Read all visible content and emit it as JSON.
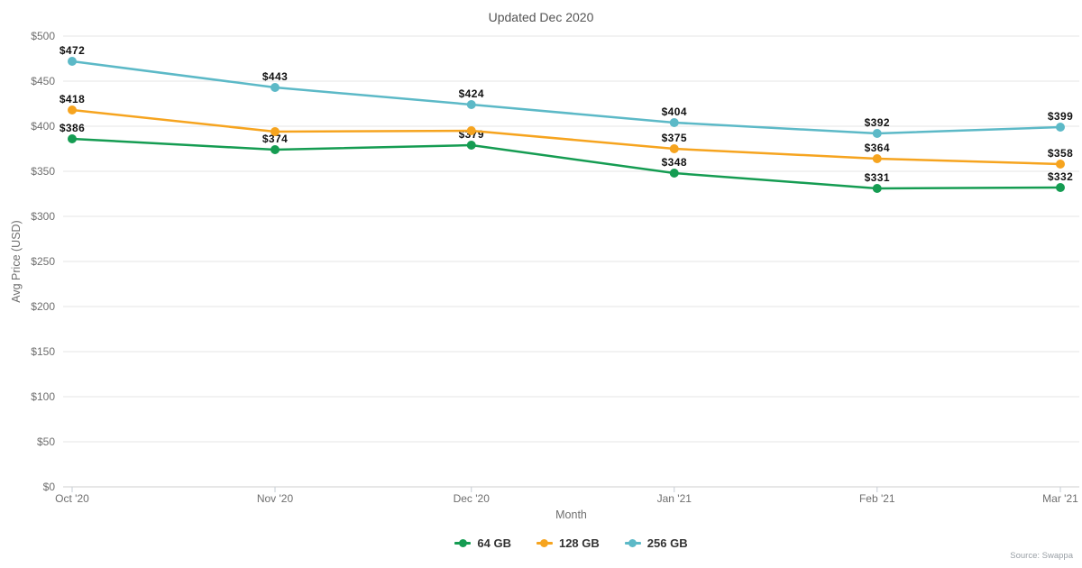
{
  "title": "Updated Dec 2020",
  "source": "Source: Swappa",
  "chart_data": {
    "type": "line",
    "title": "Updated Dec 2020",
    "xlabel": "Month",
    "ylabel": "Avg Price (USD)",
    "x": [
      "Oct '20",
      "Nov '20",
      "Dec '20",
      "Jan '21",
      "Feb '21",
      "Mar '21"
    ],
    "x_day_offsets": [
      0,
      31,
      61,
      92,
      123,
      151
    ],
    "ylim": [
      0,
      500
    ],
    "ytick_step": 50,
    "ytick_prefix": "$",
    "grid": true,
    "legend_position": "bottom",
    "series": [
      {
        "name": "64 GB",
        "color": "#159c52",
        "values": [
          386,
          374,
          379,
          348,
          331,
          332
        ],
        "labels": [
          "$386",
          "$374",
          "$379",
          "$348",
          "$331",
          "$332"
        ]
      },
      {
        "name": "128 GB",
        "color": "#f6a41f",
        "values": [
          418,
          394,
          395,
          375,
          364,
          358
        ],
        "labels": [
          "$418",
          null,
          null,
          "$375",
          "$364",
          "$358"
        ]
      },
      {
        "name": "256 GB",
        "color": "#5cb9c7",
        "values": [
          472,
          443,
          424,
          404,
          392,
          399
        ],
        "labels": [
          "$472",
          "$443",
          "$424",
          "$404",
          "$392",
          "$399"
        ]
      }
    ]
  },
  "style": {
    "grid_color": "#e5e5e5",
    "axis_line_color": "#cfcfcf",
    "tick_mark_color": "#c6cdd4",
    "tick_label_color": "#6e6e6e",
    "data_label_color": "#111111"
  }
}
